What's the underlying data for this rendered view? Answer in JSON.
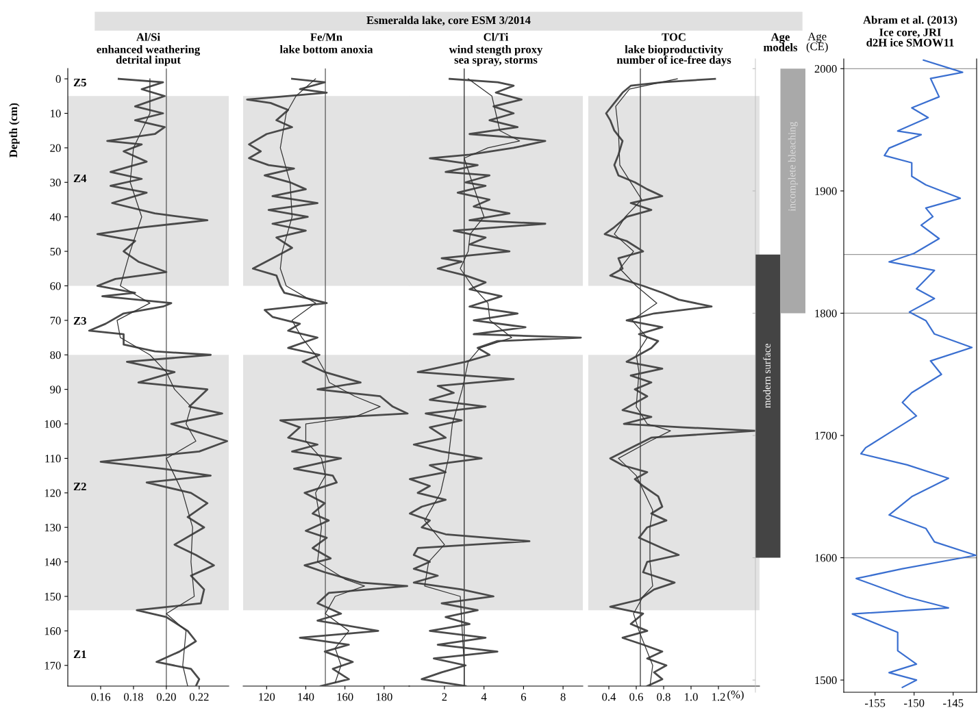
{
  "chart_data": [
    {
      "type": "line",
      "orientation": "horizontal",
      "title": "Al/Si",
      "subtitle": "enhanced weathering\ndetrital input",
      "ylabel": "Depth (cm)",
      "annotations": [
        "Esmeralda lake, core ESM 3/2014",
        "Z5",
        "Z4",
        "Z3",
        "Z2",
        "Z1"
      ],
      "xlim": [
        0.14,
        0.238
      ],
      "xticks": [
        0.16,
        0.18,
        {
          "value": 0.2,
          "label": "0.20"
        },
        0.22
      ],
      "ylim": [
        176,
        -3
      ],
      "yticks": [
        0,
        10,
        20,
        30,
        40,
        50,
        60,
        70,
        80,
        90,
        100,
        110,
        120,
        130,
        140,
        150,
        160,
        170
      ],
      "ref_lines": [
        {
          "axis": "x",
          "value": 0.2,
          "color": "#555555"
        }
      ],
      "bands": [
        {
          "axis": "y",
          "from": 5,
          "to": 60,
          "color": "#e3e3e3"
        },
        {
          "axis": "y",
          "from": 80,
          "to": 154,
          "color": "#e3e3e3"
        }
      ],
      "series": [
        {
          "color": "#4a4a4a",
          "x": [
            0,
            1,
            3,
            5,
            8,
            10,
            12,
            14,
            16,
            18,
            19,
            21,
            24,
            27,
            29,
            31,
            33,
            36,
            39,
            41,
            43,
            45,
            47,
            50,
            53,
            56,
            58,
            60,
            62,
            63,
            65,
            66,
            68,
            71,
            73,
            74,
            77,
            79,
            80,
            82,
            85,
            88,
            90,
            95,
            97,
            100,
            105,
            108,
            111,
            113,
            115,
            117,
            120,
            123,
            127,
            130,
            135,
            138,
            141,
            144,
            148,
            152,
            154,
            156,
            160,
            163,
            166,
            169,
            171,
            174,
            176
          ],
          "values": [
            0.171,
            0.198,
            0.185,
            0.199,
            0.181,
            0.198,
            0.181,
            0.199,
            0.193,
            0.164,
            0.185,
            0.174,
            0.188,
            0.166,
            0.185,
            0.166,
            0.188,
            0.167,
            0.193,
            0.225,
            0.186,
            0.158,
            0.181,
            0.174,
            0.183,
            0.2,
            0.169,
            0.158,
            0.181,
            0.161,
            0.203,
            0.198,
            0.174,
            0.163,
            0.153,
            0.174,
            0.174,
            0.193,
            0.227,
            0.176,
            0.205,
            0.183,
            0.225,
            0.214,
            0.234,
            0.203,
            0.237,
            0.22,
            0.16,
            0.198,
            0.227,
            0.188,
            0.215,
            0.225,
            0.213,
            0.223,
            0.205,
            0.218,
            0.229,
            0.215,
            0.223,
            0.221,
            0.182,
            0.2,
            0.213,
            0.218,
            0.208,
            0.194,
            0.215,
            0.22,
            0.218
          ]
        },
        {
          "color": "#333333",
          "x": [
            0,
            10,
            20,
            30,
            40,
            50,
            60,
            65,
            70,
            75,
            80,
            85,
            90,
            95,
            100,
            105,
            110,
            115,
            120,
            130,
            140,
            150,
            155,
            160,
            170,
            176
          ],
          "values": [
            0.19,
            0.19,
            0.18,
            0.178,
            0.185,
            0.178,
            0.172,
            0.19,
            0.17,
            0.172,
            0.19,
            0.2,
            0.205,
            0.215,
            0.212,
            0.218,
            0.2,
            0.205,
            0.21,
            0.216,
            0.215,
            0.217,
            0.2,
            0.212,
            0.21,
            0.213
          ]
        }
      ]
    },
    {
      "type": "line",
      "orientation": "horizontal",
      "title": "Fe/Mn",
      "subtitle": "lake bottom anoxia",
      "tick_labels": "x",
      "xlim": [
        108,
        193
      ],
      "xticks": [
        120,
        140,
        160,
        180
      ],
      "ylim": [
        176,
        -3
      ],
      "ref_lines": [
        {
          "axis": "x",
          "value": 150,
          "color": "#555555"
        }
      ],
      "bands": [
        {
          "axis": "y",
          "from": 5,
          "to": 60,
          "color": "#e3e3e3"
        },
        {
          "axis": "y",
          "from": 80,
          "to": 154,
          "color": "#e3e3e3"
        }
      ],
      "series": [
        {
          "color": "#4a4a4a",
          "x": [
            0,
            1,
            3,
            4,
            6,
            7,
            9,
            12,
            14,
            16,
            19,
            21,
            23,
            25,
            26,
            28,
            30,
            32,
            34,
            36,
            38,
            40,
            42,
            44,
            46,
            49,
            52,
            55,
            57,
            60,
            62,
            65,
            67,
            69,
            71,
            73,
            75,
            78,
            80,
            82,
            85,
            88,
            90,
            92,
            95,
            97,
            99,
            101,
            104,
            106,
            108,
            110,
            113,
            115,
            117,
            120,
            123,
            126,
            128,
            131,
            133,
            136,
            139,
            141,
            143,
            146,
            147,
            149,
            152,
            155,
            157,
            160,
            162,
            164,
            166,
            169,
            171,
            174,
            176
          ],
          "values": [
            133,
            149.7,
            137,
            150.7,
            110,
            122,
            131,
            125,
            133,
            120,
            111,
            117,
            111,
            121,
            134,
            119,
            132,
            140,
            123,
            146,
            121,
            141,
            123,
            140,
            125,
            133,
            123,
            113,
            125,
            127,
            129,
            150.7,
            119,
            123,
            137,
            131,
            146,
            131,
            147,
            138.4,
            149.7,
            168,
            146,
            178,
            184.4,
            192,
            127,
            137,
            131,
            146,
            133,
            158,
            134,
            153.8,
            155.8,
            139.4,
            149.7,
            143.5,
            151.7,
            140,
            150.7,
            143.5,
            152.7,
            139.4,
            149.7,
            168,
            191.8,
            151.7,
            146,
            158,
            146,
            177,
            137,
            162,
            149.7,
            164,
            153.8,
            162,
            147.6
          ]
        },
        {
          "color": "#333333",
          "x": [
            0,
            5,
            10,
            20,
            30,
            40,
            50,
            55,
            60,
            65,
            70,
            75,
            80,
            85,
            88,
            92,
            95,
            98,
            100,
            105,
            110,
            115,
            120,
            130,
            140,
            145,
            147,
            150,
            155,
            160,
            165,
            170,
            175
          ],
          "values": [
            145,
            135,
            130,
            127,
            132,
            133,
            128,
            127,
            130,
            145,
            133,
            138,
            145,
            150,
            152,
            165,
            178,
            165,
            140,
            140,
            148,
            150,
            145,
            148,
            146,
            160,
            170,
            155,
            150,
            162,
            155,
            158,
            155
          ]
        }
      ]
    },
    {
      "type": "line",
      "orientation": "horizontal",
      "title": "Cl/Ti",
      "subtitle": "wind stength proxy\nsea spray, storms",
      "tick_labels": "x",
      "xlim": [
        0.2,
        9.0
      ],
      "xticks": [
        2,
        4,
        6,
        8
      ],
      "ylim": [
        176,
        -3
      ],
      "ref_lines": [
        {
          "axis": "x",
          "value": 3,
          "color": "#222222"
        }
      ],
      "bands": [
        {
          "axis": "y",
          "from": 5,
          "to": 60,
          "color": "#e3e3e3"
        },
        {
          "axis": "y",
          "from": 80,
          "to": 154,
          "color": "#e3e3e3"
        }
      ],
      "series": [
        {
          "color": "#4a4a4a",
          "x": [
            0,
            1,
            2,
            4,
            6,
            8,
            10,
            12,
            14,
            16,
            17,
            18,
            20,
            22,
            23,
            25,
            27,
            28,
            30,
            31,
            33,
            35,
            37,
            39,
            41,
            42,
            44,
            46,
            48,
            50,
            52,
            53,
            55,
            57,
            59,
            61,
            63,
            66,
            68,
            70,
            72,
            74,
            75,
            76,
            78,
            80,
            82,
            85,
            87,
            89,
            91,
            93,
            95,
            97,
            99,
            101,
            104,
            106,
            108,
            110,
            112,
            114,
            116,
            118,
            120,
            122,
            124,
            126,
            128,
            130,
            132,
            134,
            136,
            138,
            140,
            142,
            144,
            146,
            148,
            150,
            152,
            154,
            156,
            158,
            160,
            162,
            164,
            166,
            168,
            170,
            172,
            174,
            176
          ],
          "values": [
            2.26,
            4.7,
            5.5,
            4.6,
            5.9,
            4.48,
            5.5,
            4.28,
            5.7,
            3.27,
            5.5,
            7.1,
            5.5,
            3.27,
            1.26,
            3.68,
            2.06,
            4.28,
            3.07,
            4.08,
            2.67,
            4.28,
            3.48,
            5.29,
            3.27,
            7.1,
            2.47,
            4.08,
            3.27,
            5.29,
            1.86,
            2.87,
            1.66,
            3.07,
            4.08,
            3.27,
            4.89,
            3.27,
            5.7,
            3.48,
            6.1,
            3.48,
            8.9,
            4.68,
            3.68,
            4.28,
            3.07,
            0.65,
            5.5,
            1.66,
            2.47,
            1.26,
            4.08,
            1.05,
            2.87,
            1.26,
            2.06,
            0.45,
            1.86,
            3.88,
            1.26,
            2.06,
            0.25,
            1.26,
            0.65,
            2.06,
            0.85,
            0.25,
            1.26,
            0.85,
            2.06,
            6.3,
            0.65,
            0.45,
            1.26,
            0.45,
            1.66,
            0.45,
            2.87,
            4.48,
            1.86,
            3.68,
            2.06,
            3.27,
            1.26,
            4.08,
            1.66,
            4.68,
            1.46,
            3.07,
            1.86,
            0.85,
            3.07
          ]
        },
        {
          "color": "#333333",
          "x": [
            0,
            5,
            10,
            15,
            18,
            20,
            23,
            30,
            40,
            45,
            50,
            55,
            60,
            65,
            70,
            75,
            78,
            82,
            90,
            100,
            110,
            120,
            128,
            135,
            140,
            147,
            150,
            160,
            170,
            176
          ],
          "values": [
            3.2,
            4.4,
            4.6,
            4.8,
            5.8,
            4.2,
            3.0,
            3.4,
            4.0,
            3.3,
            3.2,
            2.8,
            3.4,
            4.2,
            4.3,
            5.4,
            3.8,
            3.2,
            2.9,
            2.4,
            2.2,
            1.8,
            1.0,
            2.0,
            1.2,
            1.0,
            2.8,
            2.9,
            3.0,
            3.0
          ]
        }
      ]
    },
    {
      "type": "line",
      "orientation": "horizontal",
      "title": "TOC",
      "subtitle": "lake bioproductivity\nnumber of ice-free days",
      "xlabel": "(%)",
      "tick_labels": "x",
      "xlim": [
        0.25,
        1.5
      ],
      "xticks": [
        0.4,
        0.6,
        0.8,
        {
          "value": 1,
          "label": "1.0"
        },
        1.2
      ],
      "ylim": [
        176,
        -3
      ],
      "ref_lines": [
        {
          "axis": "x",
          "value": 0.63,
          "color": "#333333"
        }
      ],
      "bands": [
        {
          "axis": "y",
          "from": 5,
          "to": 60,
          "color": "#e3e3e3"
        },
        {
          "axis": "y",
          "from": 80,
          "to": 154,
          "color": "#e3e3e3"
        }
      ],
      "series": [
        {
          "color": "#4a4a4a",
          "x": [
            0,
            1,
            2,
            4,
            7,
            10,
            12,
            15,
            18,
            22,
            25,
            28,
            30,
            32,
            34,
            36,
            38,
            40,
            43,
            45,
            47,
            50,
            52,
            55,
            57,
            60,
            62,
            64,
            66,
            68,
            70,
            72,
            74,
            76,
            78,
            80,
            82,
            84,
            86,
            88,
            90,
            92,
            96,
            98,
            100,
            101,
            102,
            104,
            107,
            110,
            112,
            114,
            116,
            118,
            121,
            124,
            126,
            128,
            130,
            133,
            136,
            138,
            140,
            143,
            146,
            148,
            151,
            153,
            155,
            158,
            160,
            162,
            164,
            166,
            168,
            170,
            172,
            174,
            176
          ],
          "values": [
            1.175,
            0.79,
            0.56,
            0.5,
            0.44,
            0.38,
            0.41,
            0.44,
            0.5,
            0.47,
            0.44,
            0.47,
            0.59,
            0.68,
            0.79,
            0.56,
            0.71,
            0.53,
            0.44,
            0.37,
            0.53,
            0.65,
            0.47,
            0.5,
            0.41,
            0.65,
            0.79,
            0.91,
            1.15,
            0.73,
            0.53,
            0.79,
            0.62,
            0.76,
            0.71,
            0.62,
            0.53,
            0.79,
            0.56,
            0.71,
            0.59,
            0.68,
            0.5,
            0.71,
            0.51,
            0.94,
            1.47,
            0.71,
            0.56,
            0.41,
            0.5,
            0.68,
            0.59,
            0.65,
            0.76,
            0.79,
            0.71,
            0.82,
            0.68,
            0.62,
            0.79,
            0.91,
            0.68,
            0.65,
            0.88,
            0.73,
            0.62,
            0.41,
            0.65,
            0.56,
            0.68,
            0.5,
            0.65,
            0.79,
            0.68,
            0.82,
            0.73,
            0.79,
            0.68
          ]
        },
        {
          "color": "#333333",
          "x": [
            0,
            3,
            8,
            15,
            25,
            30,
            35,
            40,
            45,
            50,
            55,
            60,
            65,
            70,
            75,
            80,
            85,
            95,
            100,
            102,
            105,
            110,
            115,
            125,
            130,
            140,
            147,
            150,
            155,
            160,
            170,
            176
          ],
          "values": [
            0.9,
            0.55,
            0.45,
            0.47,
            0.48,
            0.56,
            0.64,
            0.52,
            0.44,
            0.58,
            0.48,
            0.6,
            0.75,
            0.57,
            0.68,
            0.6,
            0.62,
            0.6,
            0.68,
            0.85,
            0.7,
            0.47,
            0.6,
            0.72,
            0.7,
            0.7,
            0.72,
            0.65,
            0.58,
            0.62,
            0.72,
            0.7
          ]
        }
      ]
    },
    {
      "type": "bar",
      "title": "Age\nmodels",
      "tick_labels": false,
      "categories": [
        "modern surface",
        "incomplete bleaching"
      ],
      "values": [
        248,
        200
      ],
      "base": [
        1600,
        1800
      ],
      "colors": [
        "#444444",
        "#a9a9a9"
      ],
      "ylim": [
        1490,
        2008
      ],
      "yticks": [
        1500,
        1600,
        1700,
        1800,
        1900,
        2000
      ]
    },
    {
      "type": "line",
      "orientation": "horizontal",
      "title": "Abram et al. (2013)",
      "subtitle": "Ice core, JRI\nd2H ice SMOW11",
      "ylabel": "Age\n(CE)",
      "xlim": [
        -159,
        -142
      ],
      "xticks": [
        -155,
        -150,
        -145
      ],
      "ylim": [
        1490,
        2008
      ],
      "yticks": [
        1500,
        1600,
        1700,
        1800,
        1900,
        2000
      ],
      "ref_lines": [
        {
          "axis": "y",
          "value": 2000,
          "color": "#999999"
        },
        {
          "axis": "y",
          "value": 1848,
          "color": "#999999"
        },
        {
          "axis": "y",
          "value": 1800,
          "color": "#999999"
        },
        {
          "axis": "y",
          "value": 1600,
          "color": "#999999"
        }
      ],
      "series": [
        {
          "color": "#3a6fd0",
          "x": [
            2007,
            1997,
            1992,
            1977,
            1968,
            1960,
            1949,
            1946,
            1935,
            1929,
            1923,
            1912,
            1905,
            1894,
            1886,
            1879,
            1872,
            1861,
            1849,
            1842,
            1835,
            1820,
            1812,
            1801,
            1794,
            1783,
            1772,
            1761,
            1750,
            1735,
            1727,
            1716,
            1702,
            1690,
            1685,
            1676,
            1665,
            1650,
            1635,
            1624,
            1613,
            1602,
            1591,
            1583,
            1568,
            1559,
            1554,
            1539,
            1524,
            1513,
            1506,
            1500,
            1494
          ],
          "values": [
            -148.8,
            -143.8,
            -147.9,
            -146.8,
            -150.3,
            -148.2,
            -152.1,
            -149.1,
            -153.2,
            -153.8,
            -150.3,
            -150.3,
            -148.5,
            -144.1,
            -148.5,
            -147.6,
            -149.1,
            -146.8,
            -150.0,
            -153.2,
            -147.4,
            -149.7,
            -147.4,
            -150.6,
            -148.5,
            -147.4,
            -142.6,
            -147.9,
            -146.5,
            -150.3,
            -151.5,
            -149.7,
            -153.2,
            -156.2,
            -156.8,
            -150.9,
            -145.6,
            -150.3,
            -153.2,
            -148.5,
            -147.4,
            -142.1,
            -151.5,
            -157.4,
            -151.0,
            -145.6,
            -157.9,
            -152.1,
            -152.1,
            -149.7,
            -153.2,
            -149.7,
            -151.5
          ]
        }
      ]
    }
  ]
}
